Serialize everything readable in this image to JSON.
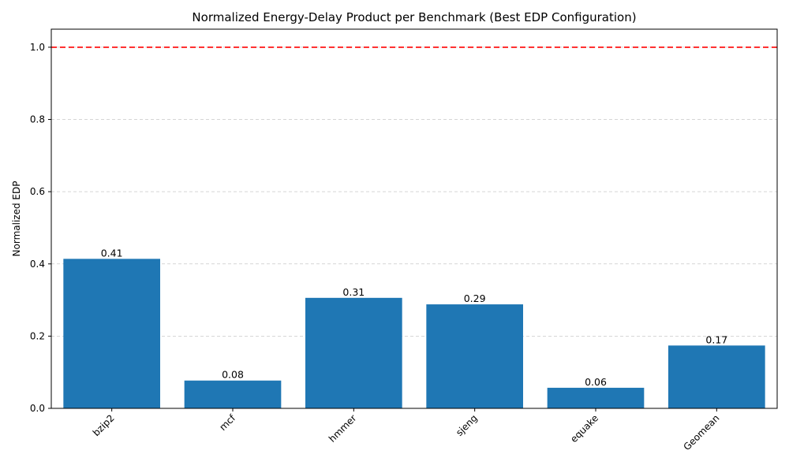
{
  "chart_data": {
    "type": "bar",
    "title": "Normalized Energy-Delay Product per Benchmark (Best EDP Configuration)",
    "xlabel": "",
    "ylabel": "Normalized EDP",
    "categories": [
      "bzip2",
      "mcf",
      "hmmer",
      "sjeng",
      "equake",
      "Geomean"
    ],
    "values": [
      0.414,
      0.077,
      0.306,
      0.288,
      0.057,
      0.174
    ],
    "value_labels": [
      "0.41",
      "0.08",
      "0.31",
      "0.29",
      "0.06",
      "0.17"
    ],
    "ylim": [
      0,
      1.05
    ],
    "yticks": [
      0.0,
      0.2,
      0.4,
      0.6,
      0.8,
      1.0
    ],
    "ytick_labels": [
      "0.0",
      "0.2",
      "0.4",
      "0.6",
      "0.8",
      "1.0"
    ],
    "reference_line": {
      "y": 1.0,
      "color": "#ff0000",
      "style": "dashed"
    },
    "bar_color": "#1f77b4",
    "grid": {
      "axis": "y",
      "style": "dashed",
      "color": "#c8c8c8"
    },
    "xtick_rotation_deg": 45
  }
}
